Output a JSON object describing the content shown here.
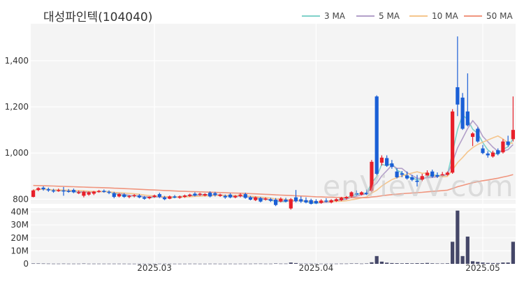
{
  "chart_data": {
    "type": "candlestick",
    "title": "대성파인텍(104040)",
    "legend": [
      {
        "name": "3 MA",
        "color": "#7fd1c9"
      },
      {
        "name": "5 MA",
        "color": "#b3a0c9"
      },
      {
        "name": "10 MA",
        "color": "#f5c58c"
      },
      {
        "name": "50 MA",
        "color": "#f0957e"
      }
    ],
    "legend_position": "top-right",
    "price_axis": {
      "ylim": [
        780,
        1560
      ],
      "ticks": [
        800,
        1000,
        1200,
        1400
      ],
      "tick_labels": [
        "800",
        "1,000",
        "1,200",
        "1,400"
      ]
    },
    "volume_axis": {
      "ylim": [
        0,
        43000000
      ],
      "ticks": [
        0,
        10000000,
        20000000,
        30000000,
        40000000
      ],
      "tick_labels": [
        "0",
        "10M",
        "20M",
        "30M",
        "40M"
      ]
    },
    "x_tick_labels": [
      {
        "label": "2025.03",
        "index": 24
      },
      {
        "label": "2025.04",
        "index": 56
      },
      {
        "label": "2025.05",
        "index": 89
      }
    ],
    "grid": true,
    "up_color": "#e8202a",
    "down_color": "#1a5fd6",
    "volume_color": "#454768",
    "watermark": "enVievV.com",
    "ohlc": [
      {
        "o": 810,
        "h": 842,
        "c": 838,
        "l": 808
      },
      {
        "o": 840,
        "h": 852,
        "c": 848,
        "l": 835
      },
      {
        "o": 850,
        "h": 856,
        "c": 843,
        "l": 837
      },
      {
        "o": 843,
        "h": 850,
        "c": 838,
        "l": 832
      },
      {
        "o": 838,
        "h": 845,
        "c": 835,
        "l": 828
      },
      {
        "o": 836,
        "h": 846,
        "c": 839,
        "l": 832
      },
      {
        "o": 838,
        "h": 853,
        "c": 836,
        "l": 815
      },
      {
        "o": 836,
        "h": 844,
        "c": 832,
        "l": 828
      },
      {
        "o": 840,
        "h": 846,
        "c": 830,
        "l": 826
      },
      {
        "o": 828,
        "h": 838,
        "c": 830,
        "l": 822
      },
      {
        "o": 815,
        "h": 836,
        "c": 832,
        "l": 808
      },
      {
        "o": 820,
        "h": 834,
        "c": 830,
        "l": 815
      },
      {
        "o": 824,
        "h": 836,
        "c": 833,
        "l": 818
      },
      {
        "o": 832,
        "h": 840,
        "c": 836,
        "l": 828
      },
      {
        "o": 836,
        "h": 842,
        "c": 834,
        "l": 828
      },
      {
        "o": 832,
        "h": 838,
        "c": 828,
        "l": 822
      },
      {
        "o": 826,
        "h": 832,
        "c": 810,
        "l": 804
      },
      {
        "o": 812,
        "h": 826,
        "c": 822,
        "l": 808
      },
      {
        "o": 820,
        "h": 826,
        "c": 810,
        "l": 806
      },
      {
        "o": 810,
        "h": 818,
        "c": 814,
        "l": 804
      },
      {
        "o": 814,
        "h": 822,
        "c": 818,
        "l": 808
      },
      {
        "o": 816,
        "h": 822,
        "c": 808,
        "l": 804
      },
      {
        "o": 808,
        "h": 814,
        "c": 802,
        "l": 798
      },
      {
        "o": 804,
        "h": 812,
        "c": 810,
        "l": 800
      },
      {
        "o": 810,
        "h": 820,
        "c": 816,
        "l": 806
      },
      {
        "o": 822,
        "h": 828,
        "c": 810,
        "l": 805
      },
      {
        "o": 808,
        "h": 814,
        "c": 800,
        "l": 796
      },
      {
        "o": 802,
        "h": 816,
        "c": 812,
        "l": 800
      },
      {
        "o": 812,
        "h": 818,
        "c": 810,
        "l": 804
      },
      {
        "o": 806,
        "h": 816,
        "c": 812,
        "l": 802
      },
      {
        "o": 810,
        "h": 820,
        "c": 816,
        "l": 806
      },
      {
        "o": 814,
        "h": 824,
        "c": 820,
        "l": 810
      },
      {
        "o": 824,
        "h": 830,
        "c": 816,
        "l": 812
      },
      {
        "o": 820,
        "h": 828,
        "c": 824,
        "l": 814
      },
      {
        "o": 816,
        "h": 826,
        "c": 822,
        "l": 812
      },
      {
        "o": 828,
        "h": 834,
        "c": 812,
        "l": 808
      },
      {
        "o": 826,
        "h": 832,
        "c": 818,
        "l": 812
      },
      {
        "o": 814,
        "h": 824,
        "c": 820,
        "l": 810
      },
      {
        "o": 814,
        "h": 820,
        "c": 808,
        "l": 802
      },
      {
        "o": 820,
        "h": 826,
        "c": 808,
        "l": 804
      },
      {
        "o": 808,
        "h": 818,
        "c": 814,
        "l": 804
      },
      {
        "o": 814,
        "h": 826,
        "c": 820,
        "l": 808
      },
      {
        "o": 822,
        "h": 828,
        "c": 806,
        "l": 802
      },
      {
        "o": 808,
        "h": 814,
        "c": 798,
        "l": 795
      },
      {
        "o": 796,
        "h": 812,
        "c": 808,
        "l": 792
      },
      {
        "o": 804,
        "h": 810,
        "c": 790,
        "l": 786
      },
      {
        "o": 798,
        "h": 808,
        "c": 803,
        "l": 794
      },
      {
        "o": 800,
        "h": 806,
        "c": 793,
        "l": 788
      },
      {
        "o": 798,
        "h": 805,
        "c": 775,
        "l": 770
      },
      {
        "o": 790,
        "h": 808,
        "c": 802,
        "l": 786
      },
      {
        "o": 798,
        "h": 806,
        "c": 790,
        "l": 786
      },
      {
        "o": 760,
        "h": 805,
        "c": 800,
        "l": 755
      },
      {
        "o": 808,
        "h": 840,
        "c": 792,
        "l": 786
      },
      {
        "o": 800,
        "h": 812,
        "c": 790,
        "l": 784
      },
      {
        "o": 796,
        "h": 808,
        "c": 786,
        "l": 782
      },
      {
        "o": 796,
        "h": 802,
        "c": 780,
        "l": 777
      },
      {
        "o": 792,
        "h": 800,
        "c": 782,
        "l": 779
      },
      {
        "o": 784,
        "h": 800,
        "c": 794,
        "l": 780
      },
      {
        "o": 794,
        "h": 804,
        "c": 790,
        "l": 786
      },
      {
        "o": 786,
        "h": 800,
        "c": 796,
        "l": 782
      },
      {
        "o": 792,
        "h": 804,
        "c": 800,
        "l": 788
      },
      {
        "o": 796,
        "h": 810,
        "c": 806,
        "l": 792
      },
      {
        "o": 804,
        "h": 814,
        "c": 810,
        "l": 798
      },
      {
        "o": 812,
        "h": 834,
        "c": 830,
        "l": 808
      },
      {
        "o": 826,
        "h": 838,
        "c": 820,
        "l": 814
      },
      {
        "o": 820,
        "h": 834,
        "c": 830,
        "l": 816
      },
      {
        "o": 828,
        "h": 842,
        "c": 822,
        "l": 818
      },
      {
        "o": 836,
        "h": 970,
        "c": 962,
        "l": 830
      },
      {
        "o": 1245,
        "h": 1250,
        "c": 910,
        "l": 905
      },
      {
        "o": 958,
        "h": 990,
        "c": 980,
        "l": 946
      },
      {
        "o": 978,
        "h": 990,
        "c": 945,
        "l": 940
      },
      {
        "o": 955,
        "h": 970,
        "c": 940,
        "l": 932
      },
      {
        "o": 920,
        "h": 934,
        "c": 895,
        "l": 890
      },
      {
        "o": 912,
        "h": 922,
        "c": 906,
        "l": 895
      },
      {
        "o": 903,
        "h": 920,
        "c": 890,
        "l": 885
      },
      {
        "o": 895,
        "h": 905,
        "c": 884,
        "l": 878
      },
      {
        "o": 880,
        "h": 905,
        "c": 875,
        "l": 855
      },
      {
        "o": 885,
        "h": 910,
        "c": 900,
        "l": 878
      },
      {
        "o": 902,
        "h": 925,
        "c": 915,
        "l": 895
      },
      {
        "o": 920,
        "h": 928,
        "c": 898,
        "l": 893
      },
      {
        "o": 904,
        "h": 916,
        "c": 898,
        "l": 892
      },
      {
        "o": 902,
        "h": 918,
        "c": 908,
        "l": 898
      },
      {
        "o": 906,
        "h": 920,
        "c": 915,
        "l": 902
      },
      {
        "o": 915,
        "h": 1190,
        "c": 1180,
        "l": 910
      },
      {
        "o": 1285,
        "h": 1505,
        "c": 1210,
        "l": 1160
      },
      {
        "o": 1240,
        "h": 1260,
        "c": 1105,
        "l": 1100
      },
      {
        "o": 1180,
        "h": 1345,
        "c": 1120,
        "l": 1115
      },
      {
        "o": 1070,
        "h": 1090,
        "c": 1085,
        "l": 1030
      },
      {
        "o": 1105,
        "h": 1112,
        "c": 1050,
        "l": 1045
      },
      {
        "o": 1020,
        "h": 1035,
        "c": 1000,
        "l": 995
      },
      {
        "o": 998,
        "h": 1008,
        "c": 990,
        "l": 980
      },
      {
        "o": 985,
        "h": 1010,
        "c": 1002,
        "l": 980
      },
      {
        "o": 1012,
        "h": 1020,
        "c": 996,
        "l": 990
      },
      {
        "o": 1003,
        "h": 1060,
        "c": 1050,
        "l": 998
      },
      {
        "o": 1050,
        "h": 1075,
        "c": 1035,
        "l": 1028
      },
      {
        "o": 1060,
        "h": 1245,
        "c": 1100,
        "l": 1050
      }
    ],
    "volume": [
      300000,
      300000,
      250000,
      200000,
      150000,
      150000,
      200000,
      150000,
      150000,
      150000,
      250000,
      150000,
      150000,
      150000,
      150000,
      150000,
      150000,
      150000,
      150000,
      120000,
      120000,
      120000,
      120000,
      120000,
      120000,
      150000,
      150000,
      150000,
      120000,
      120000,
      120000,
      150000,
      150000,
      120000,
      120000,
      150000,
      150000,
      120000,
      120000,
      150000,
      120000,
      150000,
      150000,
      150000,
      200000,
      200000,
      150000,
      150000,
      300000,
      200000,
      200000,
      1000000,
      600000,
      200000,
      200000,
      200000,
      150000,
      150000,
      150000,
      150000,
      150000,
      200000,
      200000,
      300000,
      300000,
      200000,
      300000,
      1200000,
      6000000,
      1700000,
      900000,
      600000,
      500000,
      400000,
      500000,
      400000,
      500000,
      500000,
      700000,
      400000,
      300000,
      300000,
      400000,
      17000000,
      41000000,
      6000000,
      21000000,
      2000000,
      1500000,
      1000000,
      700000,
      600000,
      600000,
      1000000,
      1000000,
      17000000
    ]
  }
}
